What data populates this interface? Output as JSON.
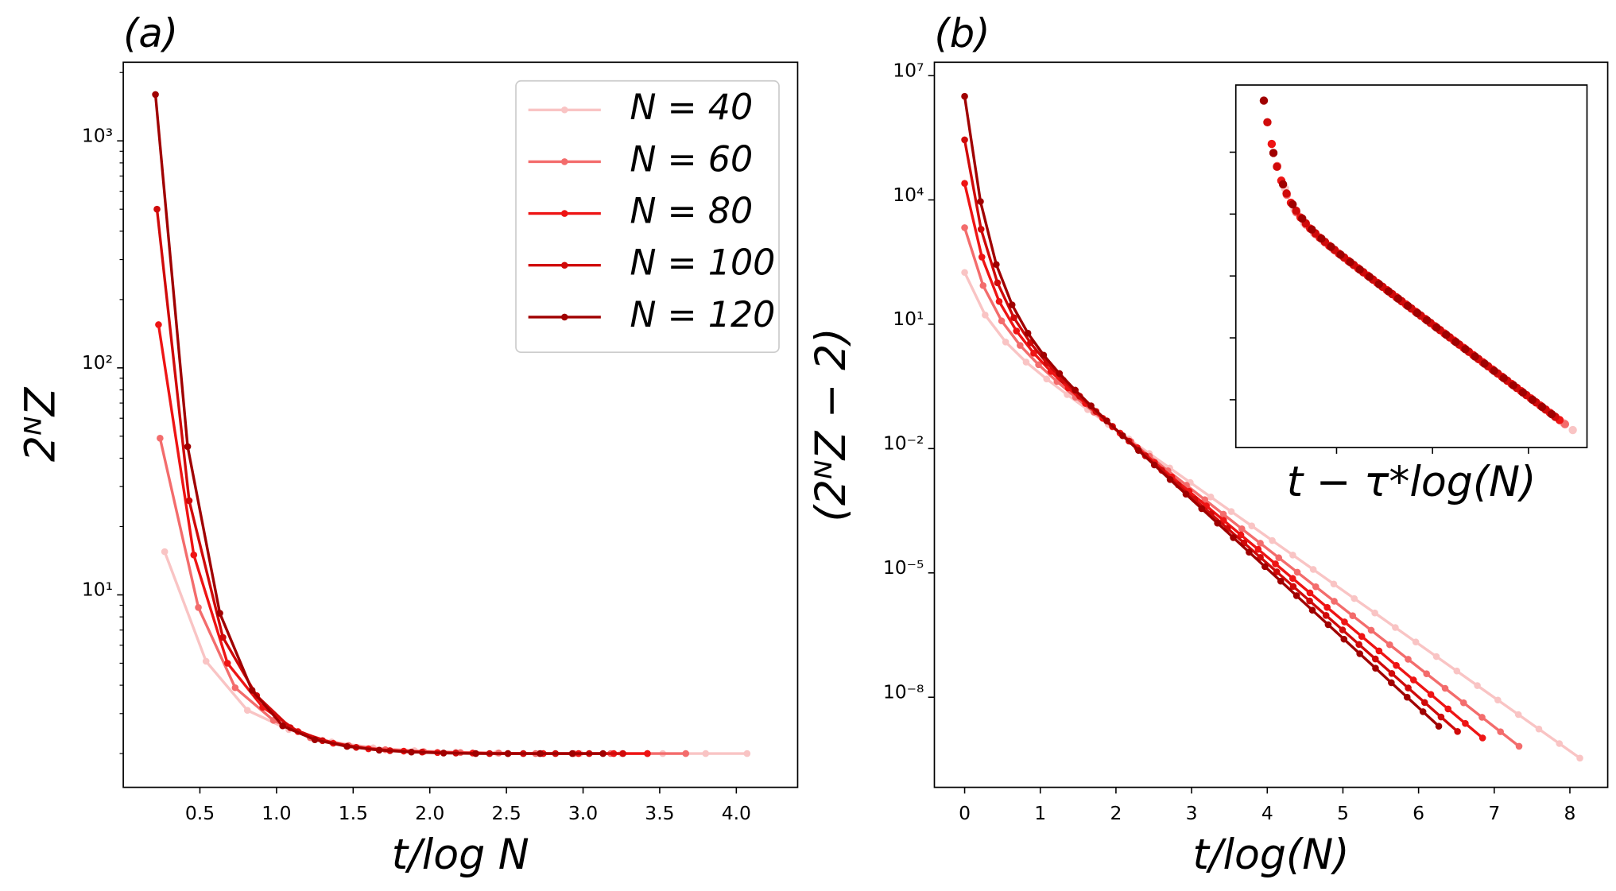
{
  "chart_data": [
    {
      "type": "line",
      "title": "(a)",
      "xlabel": "t/log N",
      "ylabel": "2ᴺZ",
      "yscale": "log",
      "legend": "upper right",
      "xlim": [
        0,
        4.4
      ],
      "ylim": [
        1.42,
        2220
      ],
      "xticks": [
        0.5,
        {
          "value": 1,
          "label": "1.0"
        },
        1.5,
        {
          "value": 2,
          "label": "2.0"
        },
        2.5,
        {
          "value": 3,
          "label": "3.0"
        },
        3.5,
        {
          "value": 4,
          "label": "4.0"
        }
      ],
      "yticks": [
        {
          "value": 10,
          "label": "10¹"
        },
        {
          "value": 100,
          "label": "10²"
        },
        {
          "value": 1000,
          "label": "10³"
        }
      ],
      "yminorticks": [
        2,
        3,
        4,
        5,
        6,
        7,
        8,
        9,
        20,
        30,
        40,
        50,
        60,
        70,
        80,
        90,
        200,
        300,
        400,
        500,
        600,
        700,
        800,
        900,
        2000
      ],
      "series": [
        {
          "name": "N = 40",
          "color": "#f9c4c4",
          "x": [
            0.27,
            0.54,
            0.81,
            1.08,
            1.36,
            1.63,
            1.9,
            2.17,
            2.44,
            2.71,
            2.98,
            3.25,
            3.52,
            3.8,
            4.07
          ],
          "values": [
            15.5,
            5.1,
            3.1,
            2.55,
            2.25,
            2.12,
            2.06,
            2.03,
            2.01,
            2.0,
            2.0,
            2.0,
            2.0,
            2.0,
            2.0
          ]
        },
        {
          "name": "N = 60",
          "color": "#f36c6c",
          "x": [
            0.24,
            0.49,
            0.73,
            0.98,
            1.22,
            1.47,
            1.71,
            1.96,
            2.2,
            2.45,
            2.69,
            2.94,
            3.18,
            3.42,
            3.67
          ],
          "values": [
            49,
            8.8,
            3.9,
            2.8,
            2.35,
            2.17,
            2.08,
            2.04,
            2.02,
            2.01,
            2.0,
            2.0,
            2.0,
            2.0,
            2.0
          ]
        },
        {
          "name": "N = 80",
          "color": "#ee1414",
          "x": [
            0.23,
            0.46,
            0.68,
            0.91,
            1.14,
            1.37,
            1.6,
            1.83,
            2.05,
            2.28,
            2.51,
            2.74,
            2.97,
            3.2,
            3.42
          ],
          "values": [
            155,
            15,
            5.0,
            3.2,
            2.5,
            2.22,
            2.1,
            2.05,
            2.02,
            2.01,
            2.0,
            2.0,
            2.0,
            2.0,
            2.0
          ]
        },
        {
          "name": "N = 100",
          "color": "#d00a0a",
          "x": [
            0.22,
            0.43,
            0.65,
            0.87,
            1.09,
            1.3,
            1.52,
            1.74,
            1.95,
            2.17,
            2.39,
            2.61,
            2.82,
            3.04,
            3.26
          ],
          "values": [
            500,
            26,
            6.5,
            3.6,
            2.6,
            2.28,
            2.13,
            2.06,
            2.03,
            2.01,
            2.0,
            2.0,
            2.0,
            2.0,
            2.0
          ]
        },
        {
          "name": "N = 120",
          "color": "#a00000",
          "x": [
            0.21,
            0.42,
            0.63,
            0.84,
            1.04,
            1.25,
            1.46,
            1.67,
            1.88,
            2.09,
            2.3,
            2.51,
            2.72,
            2.93,
            3.13
          ],
          "values": [
            1600,
            45,
            8.3,
            3.8,
            2.65,
            2.3,
            2.15,
            2.07,
            2.03,
            2.01,
            2.0,
            2.0,
            2.0,
            2.0,
            2.0
          ]
        }
      ]
    },
    {
      "type": "line",
      "title": "(b)",
      "xlabel": "t/log(N)",
      "ylabel": "(2ᴺZ − 2)",
      "yscale": "log",
      "xlim": [
        -0.4,
        8.5
      ],
      "ylim": [
        6.7e-11,
        21000000.0
      ],
      "xticks": [
        0,
        1,
        2,
        3,
        4,
        5,
        6,
        7,
        8
      ],
      "yticks": [
        {
          "value": 1e-08,
          "label": "10⁻⁸"
        },
        {
          "value": 1e-05,
          "label": "10⁻⁵"
        },
        {
          "value": 0.01,
          "label": "10⁻²"
        },
        {
          "value": 10,
          "label": "10¹"
        },
        {
          "value": 10000,
          "label": "10⁴"
        },
        {
          "value": 10000000,
          "label": "10⁷"
        }
      ],
      "series": [
        {
          "color": "#f9c4c4",
          "x": [
            0,
            0.271,
            0.542,
            0.813,
            1.084,
            1.355,
            1.626,
            1.898,
            2.169,
            2.44,
            2.711,
            2.982,
            3.253,
            3.524,
            3.795,
            4.066,
            4.337,
            4.608,
            4.879,
            5.15,
            5.422,
            5.693,
            5.964,
            6.235,
            6.506,
            6.777,
            7.048,
            7.319,
            7.59,
            7.861,
            8.132
          ],
          "values": [
            178,
            16.7,
            3.73,
            1.22,
            0.478,
            0.201,
            0.0873,
            0.0385,
            0.0171,
            0.00762,
            0.0034,
            0.00152,
            0.000679,
            0.000303,
            0.000136,
            6.05e-05,
            2.7e-05,
            1.21e-05,
            5.4e-06,
            2.41e-06,
            1.08e-06,
            4.81e-07,
            2.15e-07,
            9.59e-08,
            4.29e-08,
            1.91e-08,
            8.55e-09,
            3.82e-09,
            1.71e-09,
            7.62e-10,
            3.4e-10
          ]
        },
        {
          "color": "#f36c6c",
          "x": [
            0,
            0.244,
            0.489,
            0.733,
            0.977,
            1.221,
            1.466,
            1.71,
            1.954,
            2.198,
            2.443,
            2.687,
            2.931,
            3.175,
            3.42,
            3.664,
            3.908,
            4.152,
            4.397,
            4.641,
            4.885,
            5.129,
            5.374,
            5.618,
            5.862,
            6.106,
            6.351,
            6.595,
            6.839,
            7.083,
            7.328
          ],
          "values": [
            2140,
            85.9,
            12.05,
            3.09,
            1.06,
            0.415,
            0.174,
            0.0755,
            0.0333,
            0.01476,
            0.00656,
            0.00292,
            0.00131,
            0.000583,
            0.000261,
            0.000116,
            5.2e-05,
            2.32e-05,
            1.04e-05,
            4.63e-06,
            2.07e-06,
            9.25e-07,
            4.13e-07,
            1.85e-07,
            8.24e-08,
            3.68e-08,
            1.64e-08,
            7.35e-09,
            3.28e-09,
            1.47e-09,
            6.55e-10
          ]
        },
        {
          "color": "#ee1414",
          "x": [
            0,
            0.228,
            0.456,
            0.685,
            0.913,
            1.141,
            1.369,
            1.597,
            1.826,
            2.054,
            2.282,
            2.51,
            2.738,
            2.967,
            3.195,
            3.423,
            3.651,
            3.88,
            4.108,
            4.336,
            4.564,
            4.792,
            5.021,
            5.249,
            5.477,
            5.705,
            5.933,
            6.162,
            6.39,
            6.618,
            6.846
          ],
          "values": [
            25100,
            418,
            35.5,
            6.87,
            2.01,
            0.726,
            0.291,
            0.123,
            0.0536,
            0.0236,
            0.01047,
            0.00466,
            0.00207,
            0.000927,
            0.000414,
            0.000185,
            8.26e-05,
            3.69e-05,
            1.65e-05,
            7.36e-06,
            3.29e-06,
            1.47e-06,
            6.56e-07,
            2.93e-07,
            1.31e-07,
            5.85e-08,
            2.61e-08,
            1.17e-08,
            5.21e-09,
            2.33e-09,
            1.04e-09
          ]
        },
        {
          "color": "#d00a0a",
          "x": [
            0,
            0.217,
            0.434,
            0.651,
            0.869,
            1.086,
            1.303,
            1.52,
            1.737,
            1.954,
            2.172,
            2.389,
            2.606,
            2.823,
            3.04,
            3.257,
            3.474,
            3.692,
            3.909,
            4.126,
            4.343,
            4.56,
            4.777,
            4.995,
            5.212,
            5.429,
            5.646,
            5.863,
            6.08,
            6.297,
            6.515
          ],
          "values": [
            282000,
            1960,
            100,
            14.4,
            3.57,
            1.17,
            0.447,
            0.184,
            0.0785,
            0.0343,
            0.01514,
            0.00671,
            0.00299,
            0.00133,
            0.000594,
            0.000265,
            0.000119,
            5.3e-05,
            2.37e-05,
            1.06e-05,
            4.72e-06,
            2.11e-06,
            9.42e-07,
            4.21e-07,
            1.88e-07,
            8.39e-08,
            3.75e-08,
            1.67e-08,
            7.48e-09,
            3.34e-09,
            1.49e-09
          ]
        },
        {
          "color": "#a00000",
          "x": [
            0,
            0.209,
            0.418,
            0.627,
            0.836,
            1.044,
            1.253,
            1.462,
            1.671,
            1.88,
            2.089,
            2.298,
            2.507,
            2.716,
            2.925,
            3.133,
            3.342,
            3.551,
            3.76,
            3.969,
            4.178,
            4.387,
            4.596,
            4.805,
            5.014,
            5.223,
            5.431,
            5.64,
            5.849,
            6.058,
            6.267
          ],
          "values": [
            3160000,
            9160,
            277,
            29.4,
            6.08,
            1.8,
            0.647,
            0.257,
            0.1076,
            0.0466,
            0.0204,
            0.00904,
            0.00402,
            0.00179,
            0.000796,
            0.000356,
            0.000159,
            7.1e-05,
            3.17e-05,
            1.42e-05,
            6.32e-06,
            2.82e-06,
            1.26e-06,
            5.64e-07,
            2.52e-07,
            1.12e-07,
            5.02e-08,
            2.24e-08,
            1e-08,
            4.48e-09,
            2e-09
          ]
        }
      ]
    },
    {
      "type": "scatter",
      "xlabel": "t − τ*log(N)",
      "yscale": "log",
      "tick_labels": false,
      "xlim": [
        -12.5,
        24.1
      ],
      "ylim": [
        4.8e-11,
        18000000.0
      ],
      "xticks": [
        -2,
        8,
        18
      ],
      "yticks": [
        1e-08,
        1e-05,
        0.01,
        10,
        10000
      ],
      "series": [
        {
          "color": "#f9c4c4",
          "x": [
            -7.38,
            -6.38,
            -5.38,
            -4.38,
            -3.38,
            -2.38,
            -1.38,
            -0.38,
            0.62,
            1.62,
            2.62,
            3.62,
            4.62,
            5.62,
            6.62,
            7.62,
            8.62,
            9.62,
            10.62,
            11.62,
            12.62,
            13.62,
            14.62,
            15.62,
            16.62,
            17.62,
            18.62,
            19.62,
            20.62,
            21.62,
            22.62
          ]
        },
        {
          "color": "#f36c6c",
          "x": [
            -8.19,
            -7.19,
            -6.19,
            -5.19,
            -4.19,
            -3.19,
            -2.19,
            -1.19,
            -0.19,
            0.81,
            1.81,
            2.81,
            3.81,
            4.81,
            5.81,
            6.81,
            7.81,
            8.81,
            9.81,
            10.81,
            11.81,
            12.81,
            13.81,
            14.81,
            15.81,
            16.81,
            17.81,
            18.81,
            19.81,
            20.81,
            21.81
          ]
        },
        {
          "color": "#ee1414",
          "x": [
            -8.76,
            -7.76,
            -6.76,
            -5.76,
            -4.76,
            -3.76,
            -2.76,
            -1.76,
            -0.76,
            0.24,
            1.24,
            2.24,
            3.24,
            4.24,
            5.24,
            6.24,
            7.24,
            8.24,
            9.24,
            10.24,
            11.24,
            12.24,
            13.24,
            14.24,
            15.24,
            16.24,
            17.24,
            18.24,
            19.24,
            20.24,
            21.24
          ]
        },
        {
          "color": "#d00a0a",
          "x": [
            -9.21,
            -8.21,
            -7.21,
            -6.21,
            -5.21,
            -4.21,
            -3.21,
            -2.21,
            -1.21,
            -0.21,
            0.79,
            1.79,
            2.79,
            3.79,
            4.79,
            5.79,
            6.79,
            7.79,
            8.79,
            9.79,
            10.79,
            11.79,
            12.79,
            13.79,
            14.79,
            15.79,
            16.79,
            17.79,
            18.79,
            19.79,
            20.79
          ]
        },
        {
          "color": "#a00000",
          "x": [
            -9.58,
            -8.58,
            -7.58,
            -6.58,
            -5.58,
            -4.58,
            -3.58,
            -2.58,
            -1.58,
            -0.58,
            0.42,
            1.42,
            2.42,
            3.42,
            4.42,
            5.42,
            6.42,
            7.42,
            8.42,
            9.42,
            10.42,
            11.42,
            12.42,
            13.42,
            14.42,
            15.42,
            16.42,
            17.42,
            18.42,
            19.42,
            20.42
          ]
        }
      ]
    }
  ]
}
